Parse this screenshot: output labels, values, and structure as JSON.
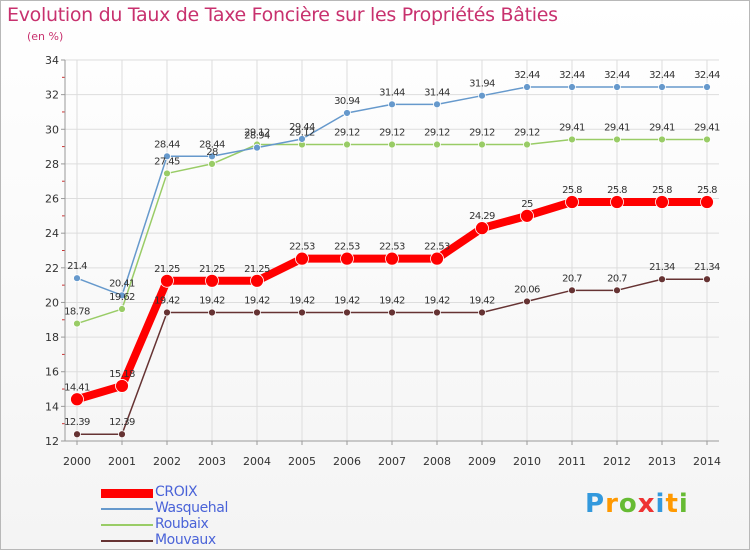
{
  "chart_data": {
    "type": "line",
    "title": "Evolution du Taux de Taxe Foncière sur les Propriétés Bâties",
    "ylabel": "(en %)",
    "xlabel": "",
    "ylim": [
      12,
      34
    ],
    "yticks": [
      12,
      14,
      16,
      18,
      20,
      22,
      24,
      26,
      28,
      30,
      32,
      34
    ],
    "grid": true,
    "categories": [
      "2000",
      "2001",
      "2002",
      "2003",
      "2004",
      "2005",
      "2006",
      "2007",
      "2008",
      "2009",
      "2010",
      "2011",
      "2012",
      "2013",
      "2014"
    ],
    "series": [
      {
        "name": "CROIX",
        "color": "#ff0000",
        "labelColor": "#333333",
        "values": [
          14.41,
          15.18,
          21.25,
          21.25,
          21.25,
          22.53,
          22.53,
          22.53,
          22.53,
          24.29,
          25,
          25.8,
          25.8,
          25.8,
          25.8
        ],
        "labels": [
          "14.41",
          "15.18",
          "21.25",
          "21.25",
          "21.25",
          "22.53",
          "22.53",
          "22.53",
          "22.53",
          "24.29",
          "25",
          "25.8",
          "25.8",
          "25.8",
          "25.8"
        ]
      },
      {
        "name": "Wasquehal",
        "color": "#6699cc",
        "labelColor": "#333333",
        "values": [
          21.4,
          20.41,
          28.44,
          28.44,
          28.94,
          29.44,
          30.94,
          31.44,
          31.44,
          31.94,
          32.44,
          32.44,
          32.44,
          32.44,
          32.44
        ],
        "labels": [
          "21.4",
          "20.41",
          "28.44",
          "28.44",
          "28.94",
          "29.44",
          "30.94",
          "31.44",
          "31.44",
          "31.94",
          "32.44",
          "32.44",
          "32.44",
          "32.44",
          "32.44"
        ]
      },
      {
        "name": "Roubaix",
        "color": "#99cc66",
        "labelColor": "#333333",
        "values": [
          18.78,
          19.62,
          27.45,
          28,
          29.12,
          29.12,
          29.12,
          29.12,
          29.12,
          29.12,
          29.12,
          29.41,
          29.41,
          29.41,
          29.41
        ],
        "labels": [
          "18.78",
          "19.62",
          "27.45",
          "28",
          "29.12",
          "29.12",
          "29.12",
          "29.12",
          "29.12",
          "29.12",
          "29.12",
          "29.41",
          "29.41",
          "29.41",
          "29.41"
        ]
      },
      {
        "name": "Mouvaux",
        "color": "#663333",
        "labelColor": "#333333",
        "values": [
          12.39,
          12.39,
          19.42,
          19.42,
          19.42,
          19.42,
          19.42,
          19.42,
          19.42,
          19.42,
          20.06,
          20.7,
          20.7,
          21.34,
          21.34
        ],
        "labels": [
          "12.39",
          "12.39",
          "19.42",
          "19.42",
          "19.42",
          "19.42",
          "19.42",
          "19.42",
          "19.42",
          "19.42",
          "20.06",
          "20.7",
          "20.7",
          "21.34",
          "21.34"
        ]
      }
    ]
  },
  "header": {
    "title": "Evolution du Taux de Taxe Foncière sur les Propriétés Bâties",
    "subtitle": "(en %)"
  },
  "legend": {
    "items": [
      {
        "label": "CROIX",
        "color": "#ff0000",
        "textColor": "#4a63d8"
      },
      {
        "label": "Wasquehal",
        "color": "#6699cc",
        "textColor": "#4a63d8"
      },
      {
        "label": "Roubaix",
        "color": "#99cc66",
        "textColor": "#4a63d8"
      },
      {
        "label": "Mouvaux",
        "color": "#663333",
        "textColor": "#4a63d8"
      }
    ]
  },
  "logo": {
    "text": "Proxiti",
    "letters": [
      {
        "ch": "P",
        "color": "#3399dd"
      },
      {
        "ch": "r",
        "color": "#ff9900"
      },
      {
        "ch": "o",
        "color": "#66bb33"
      },
      {
        "ch": "x",
        "color": "#ee3333"
      },
      {
        "ch": "i",
        "color": "#3399dd"
      },
      {
        "ch": "t",
        "color": "#ff9900"
      },
      {
        "ch": "i",
        "color": "#66bb33"
      }
    ]
  },
  "colors": {
    "title": "#c8316e",
    "grid": "#dddddd",
    "axis": "#999999",
    "tick": "#cc3333"
  }
}
